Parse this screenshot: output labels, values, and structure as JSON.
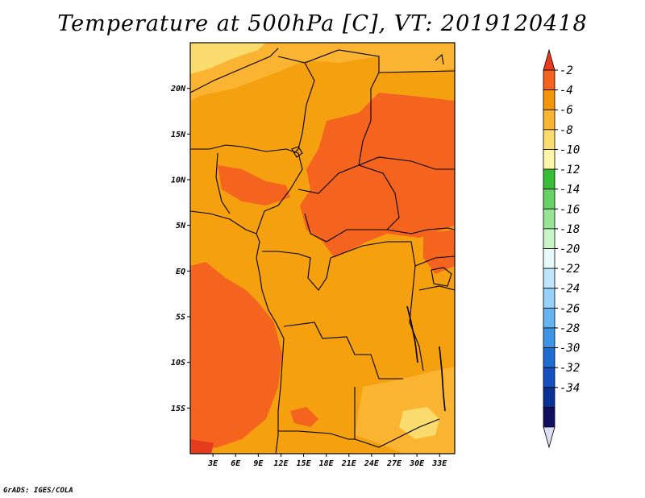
{
  "title": "Temperature at 500hPa [C], VT: 2019120418",
  "credit": "GrADS: IGES/COLA",
  "map": {
    "region": "Central Africa",
    "lat_labels": [
      "20N",
      "15N",
      "10N",
      "5N",
      "EQ",
      "5S",
      "10S",
      "15S"
    ],
    "lat_values": [
      20,
      15,
      10,
      5,
      0,
      -5,
      -10,
      -15
    ],
    "lon_labels": [
      "3E",
      "6E",
      "9E",
      "12E",
      "15E",
      "18E",
      "21E",
      "24E",
      "27E",
      "30E",
      "33E"
    ],
    "lon_values": [
      3,
      6,
      9,
      12,
      15,
      18,
      21,
      24,
      27,
      30,
      33
    ],
    "lon_range": [
      0,
      35
    ],
    "lat_range": [
      -20,
      25
    ]
  },
  "colorbar": {
    "labels": [
      "-2",
      "-4",
      "-6",
      "-8",
      "-10",
      "-12",
      "-14",
      "-16",
      "-18",
      "-20",
      "-22",
      "-24",
      "-26",
      "-28",
      "-30",
      "-32",
      "-34"
    ],
    "colors": [
      "#e63c1e",
      "#f5641e",
      "#f5960a",
      "#fab432",
      "#fadc6e",
      "#fff5aa",
      "#37be37",
      "#64d264",
      "#96e696",
      "#c8f5c8",
      "#e6fafa",
      "#bee6fa",
      "#96d2fa",
      "#64b4f0",
      "#3c96e6",
      "#1e6ed2",
      "#1450be",
      "#0a3296",
      "#101060",
      "#dcdcf5"
    ]
  }
}
